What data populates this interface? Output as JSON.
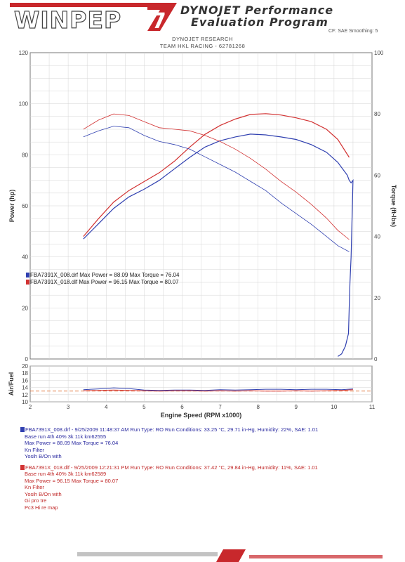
{
  "header": {
    "brand": "WINPEP",
    "brand_digit": "7",
    "title_line1": "DYNOJET Performance",
    "title_line2": "Evaluation Program",
    "smoothing": "CF: SAE  Smoothing: 5",
    "research": "DYNOJET RESEARCH",
    "team": "TEAM HKL RACING - 62781268"
  },
  "colors": {
    "run1": "#3040b0",
    "run2": "#d23232",
    "afr_ref": "#e06a2a"
  },
  "legend": [
    {
      "text": "FBA7391X_008.drf Max Power = 88.09    Max Torque = 76.04"
    },
    {
      "text": "FBA7391X_018.dlf Max Power = 96.15    Max Torque = 80.07"
    }
  ],
  "runs": [
    {
      "header": "FBA7391X_008.drf - 9/25/2009 11:48:37 AM  Run Type: RO  Run Conditions: 33.25 °C, 29.71 in-Hg,  Humidity:  22%, SAE: 1.01",
      "lines": [
        "Base  run 4th 40% 3k 11k km62555",
        "Max Power = 88.09  Max Torque = 76.04",
        "Kn Filter",
        "Yosih B/On with"
      ]
    },
    {
      "header": "FBA7391X_018.dlf - 9/25/2009 12:21:31 PM  Run Type: RO  Run Conditions: 37.42 °C, 29.84 in-Hg,  Humidity:  11%, SAE: 1.01",
      "lines": [
        "Base  run 4th 40% 3k 11k km62589",
        "Max Power = 96.15  Max Torque = 80.07",
        "Kn Filter",
        "Yosih B/On with",
        "Gi pro tre",
        "Pc3 Hi re map"
      ]
    }
  ],
  "chart_data": [
    {
      "type": "line",
      "title": "",
      "xlabel": "Engine Speed (RPM x1000)",
      "ylabel": "Power (hp)",
      "y2label": "Torque (ft-lbs)",
      "xlim": [
        2,
        11
      ],
      "ylim": [
        0,
        120
      ],
      "y2lim": [
        0,
        100
      ],
      "yticks": [
        0,
        20,
        40,
        60,
        80,
        100,
        120
      ],
      "y2ticks": [
        0,
        20,
        40,
        60,
        80,
        100
      ],
      "grid": true,
      "legend_position": "bottom-left",
      "series": [
        {
          "name": "FBA7391X_008.drf",
          "kind": "power",
          "axis": "left",
          "color": "#3040b0",
          "x": [
            3.4,
            3.8,
            4.2,
            4.6,
            5.0,
            5.4,
            5.8,
            6.2,
            6.6,
            7.0,
            7.4,
            7.8,
            8.2,
            8.6,
            9.0,
            9.4,
            9.8,
            10.1,
            10.2,
            10.35,
            10.4,
            10.45,
            10.5,
            10.45,
            10.42,
            10.4,
            10.38,
            10.3,
            10.2,
            10.1
          ],
          "y": [
            47,
            53,
            59,
            63.5,
            66.5,
            70,
            74.5,
            79,
            83,
            85.5,
            87,
            88.1,
            87.8,
            87,
            86,
            84,
            81,
            77,
            75,
            72,
            70,
            69,
            70,
            40,
            30,
            20,
            10,
            5,
            2,
            1
          ]
        },
        {
          "name": "FBA7391X_018.dlf",
          "kind": "power",
          "axis": "left",
          "color": "#d23232",
          "x": [
            3.4,
            3.8,
            4.2,
            4.6,
            5.0,
            5.4,
            5.8,
            6.2,
            6.6,
            7.0,
            7.4,
            7.8,
            8.2,
            8.6,
            9.0,
            9.4,
            9.8,
            10.1,
            10.4
          ],
          "y": [
            48,
            55,
            61.5,
            66,
            69.5,
            73,
            77.5,
            83,
            88,
            91.5,
            94,
            95.8,
            96.1,
            95.6,
            94.5,
            93,
            90,
            86,
            79
          ]
        },
        {
          "name": "FBA7391X_008.drf",
          "kind": "torque",
          "axis": "right",
          "color": "#3040b0",
          "x": [
            3.4,
            3.8,
            4.2,
            4.6,
            5.0,
            5.4,
            5.8,
            6.2,
            6.6,
            7.0,
            7.4,
            7.8,
            8.2,
            8.6,
            9.0,
            9.4,
            9.8,
            10.1,
            10.4
          ],
          "y": [
            72.5,
            74.5,
            76,
            75.5,
            73,
            71,
            70,
            68.5,
            66,
            63.5,
            61,
            58,
            55,
            51,
            47.5,
            44,
            40,
            37,
            35
          ]
        },
        {
          "name": "FBA7391X_018.dlf",
          "kind": "torque",
          "axis": "right",
          "color": "#d23232",
          "x": [
            3.4,
            3.8,
            4.2,
            4.6,
            5.0,
            5.4,
            5.8,
            6.2,
            6.6,
            7.0,
            7.4,
            7.8,
            8.2,
            8.6,
            9.0,
            9.4,
            9.8,
            10.1,
            10.4
          ],
          "y": [
            75,
            78,
            80,
            79.5,
            77.5,
            75.5,
            75,
            74.5,
            73,
            71,
            68.5,
            65.5,
            62,
            58,
            54.5,
            50.5,
            46,
            42,
            39
          ]
        }
      ]
    },
    {
      "type": "line",
      "title": "",
      "xlabel": "",
      "ylabel": "Air/Fuel",
      "xlim": [
        2,
        11
      ],
      "ylim": [
        10,
        20
      ],
      "yticks": [
        10,
        12,
        14,
        16,
        18,
        20
      ],
      "xticks": [
        2,
        3,
        4,
        5,
        6,
        7,
        8,
        9,
        10,
        11
      ],
      "grid": true,
      "reference_line": 13,
      "series": [
        {
          "name": "FBA7391X_008.drf",
          "color": "#3040b0",
          "x": [
            3.4,
            3.8,
            4.2,
            4.6,
            5.0,
            5.4,
            5.8,
            6.2,
            6.6,
            7.0,
            7.4,
            7.8,
            8.2,
            8.6,
            9.0,
            9.4,
            9.8,
            10.2,
            10.5
          ],
          "y": [
            13.4,
            13.6,
            13.9,
            13.7,
            13.3,
            13.2,
            13.3,
            13.3,
            13.2,
            13.4,
            13.3,
            13.4,
            13.5,
            13.5,
            13.4,
            13.5,
            13.5,
            13.4,
            13.6
          ]
        },
        {
          "name": "FBA7391X_018.dlf",
          "color": "#d23232",
          "x": [
            3.4,
            3.8,
            4.2,
            4.6,
            5.0,
            5.4,
            5.8,
            6.2,
            6.6,
            7.0,
            7.4,
            7.8,
            8.2,
            8.6,
            9.0,
            9.4,
            9.8,
            10.2,
            10.5
          ],
          "y": [
            13.1,
            13.2,
            13.3,
            13.2,
            13.1,
            13.0,
            13.1,
            13.1,
            13.0,
            13.1,
            13.0,
            13.1,
            13.0,
            13.0,
            13.1,
            13.0,
            13.1,
            13.2,
            13.4
          ]
        }
      ]
    }
  ]
}
